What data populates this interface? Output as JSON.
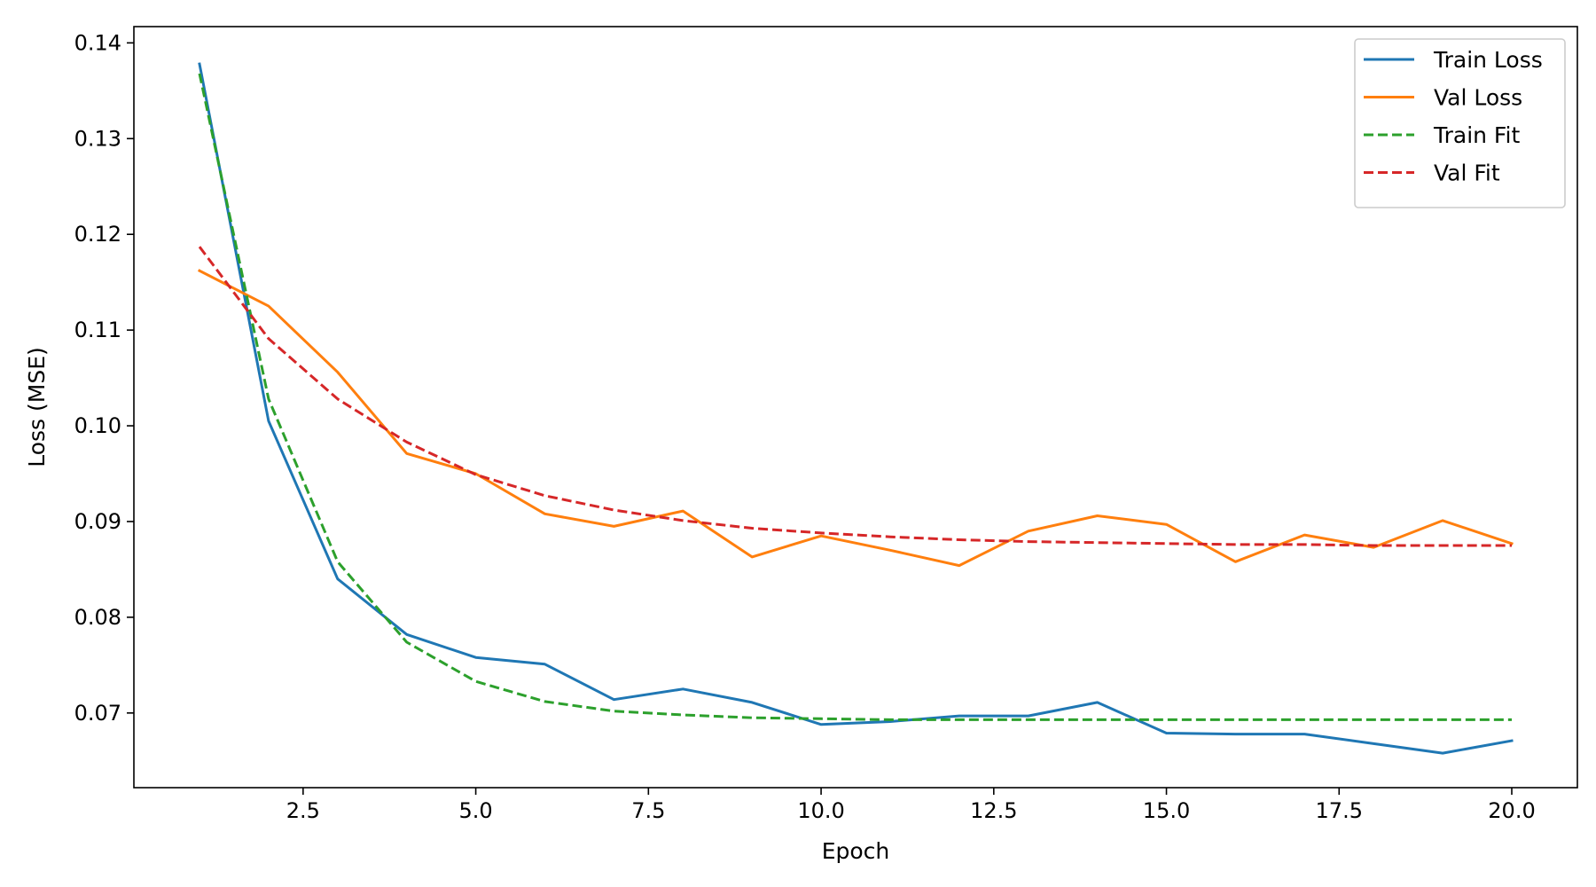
{
  "chart_data": {
    "type": "line",
    "title": "",
    "xlabel": "Epoch",
    "ylabel": "Loss (MSE)",
    "xlim": [
      0.05,
      20.95
    ],
    "ylim": [
      0.0622,
      0.1417
    ],
    "x_ticks": [
      2.5,
      5.0,
      7.5,
      10.0,
      12.5,
      15.0,
      17.5,
      20.0
    ],
    "x_tick_labels": [
      "2.5",
      "5.0",
      "7.5",
      "10.0",
      "12.5",
      "15.0",
      "17.5",
      "20.0"
    ],
    "y_ticks": [
      0.07,
      0.08,
      0.09,
      0.1,
      0.11,
      0.12,
      0.13,
      0.14
    ],
    "y_tick_labels": [
      "0.07",
      "0.08",
      "0.09",
      "0.10",
      "0.11",
      "0.12",
      "0.13",
      "0.14"
    ],
    "grid": false,
    "legend_position": "top-right",
    "x": [
      1,
      2,
      3,
      4,
      5,
      6,
      7,
      8,
      9,
      10,
      11,
      12,
      13,
      14,
      15,
      16,
      17,
      18,
      19,
      20
    ],
    "series": [
      {
        "name": "Train Loss",
        "color": "#1f77b4",
        "dashed": false,
        "values": [
          0.1378,
          0.1005,
          0.084,
          0.0782,
          0.0758,
          0.0751,
          0.0714,
          0.0725,
          0.0711,
          0.0688,
          0.0691,
          0.0697,
          0.0697,
          0.0711,
          0.0679,
          0.0678,
          0.0678,
          0.0668,
          0.0658,
          0.0671
        ]
      },
      {
        "name": "Val Loss",
        "color": "#ff7f0e",
        "dashed": false,
        "values": [
          0.1162,
          0.1125,
          0.1056,
          0.0971,
          0.095,
          0.0908,
          0.0895,
          0.0911,
          0.0863,
          0.0885,
          0.087,
          0.0854,
          0.089,
          0.0906,
          0.0897,
          0.0858,
          0.0886,
          0.0873,
          0.0901,
          0.0877
        ]
      },
      {
        "name": "Train Fit",
        "color": "#2ca02c",
        "dashed": true,
        "values": [
          0.1368,
          0.1028,
          0.0858,
          0.0774,
          0.0733,
          0.0712,
          0.0702,
          0.0698,
          0.0695,
          0.0694,
          0.0693,
          0.0693,
          0.0693,
          0.0693,
          0.0693,
          0.0693,
          0.0693,
          0.0693,
          0.0693,
          0.0693
        ]
      },
      {
        "name": "Val Fit",
        "color": "#d62728",
        "dashed": true,
        "values": [
          0.1187,
          0.1091,
          0.1028,
          0.0983,
          0.0949,
          0.0927,
          0.0912,
          0.0901,
          0.0893,
          0.0888,
          0.0884,
          0.0881,
          0.0879,
          0.0878,
          0.0877,
          0.0876,
          0.0876,
          0.0875,
          0.0875,
          0.0875
        ]
      }
    ]
  }
}
